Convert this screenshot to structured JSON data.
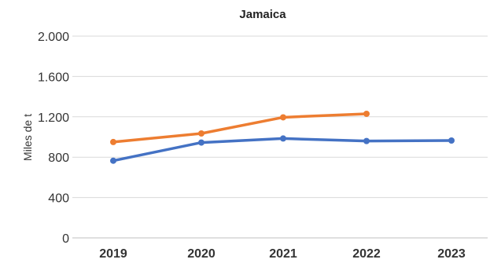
{
  "chart_data": {
    "type": "line",
    "title": "Jamaica",
    "ylabel": "Miles de t",
    "xlabel": "",
    "categories": [
      "2019",
      "2020",
      "2021",
      "2022",
      "2023"
    ],
    "ylim": [
      0,
      2000
    ],
    "yticks": [
      0,
      400,
      800,
      1200,
      1600,
      2000
    ],
    "ytick_labels": [
      "0",
      "400",
      "800",
      "1.200",
      "1.600",
      "2.000"
    ],
    "grid": true,
    "legend": "none",
    "series": [
      {
        "color": "#4472c4",
        "values": [
          765,
          945,
          985,
          960,
          965
        ]
      },
      {
        "color": "#ed7d31",
        "values": [
          950,
          1035,
          1195,
          1230,
          null
        ]
      }
    ]
  }
}
